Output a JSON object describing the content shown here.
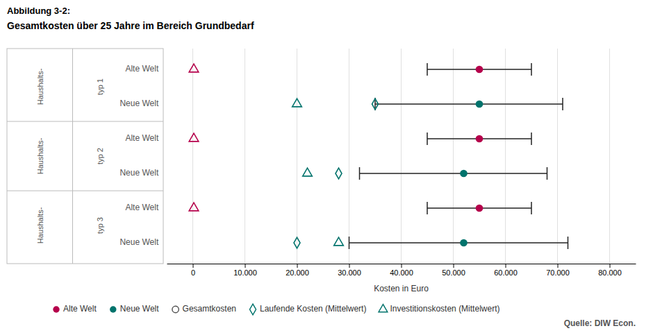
{
  "chart_data": {
    "type": "dot",
    "orientation": "horizontal",
    "title": "Abbildung 3-2:",
    "subtitle": "Gesamtkosten über 25 Jahre im Bereich Grundbedarf",
    "x_label": "Kosten in Euro",
    "source": "Quelle: DIW Econ.",
    "xlim": [
      -5000,
      85000
    ],
    "xticks": [
      0,
      {
        "value": 10000,
        "label": "10.000"
      },
      {
        "value": 20000,
        "label": "20.000"
      },
      {
        "value": 30000,
        "label": "30.000"
      },
      {
        "value": 40000,
        "label": "40.000"
      },
      {
        "value": 50000,
        "label": "50.000"
      },
      {
        "value": 60000,
        "label": "60.000"
      },
      {
        "value": 70000,
        "label": "70.000"
      },
      {
        "value": 80000,
        "label": "80.000"
      }
    ],
    "grid": true,
    "legend": "bottom",
    "categories": [
      "Alte Welt",
      "Neue Welt",
      "Alte Welt",
      "Neue Welt",
      "Alte Welt",
      "Neue Welt"
    ],
    "row_groups": [
      {
        "label": "Haushalts-",
        "sublabel": "typ 1"
      },
      {
        "label": "Haushalts-",
        "sublabel": "typ 2"
      },
      {
        "label": "Haushalts-",
        "sublabel": "typ 3"
      }
    ],
    "color_key": [
      {
        "name": "Alte Welt",
        "color": "#b5004b"
      },
      {
        "name": "Neue Welt",
        "color": "#00736c"
      }
    ],
    "series": [
      {
        "name": "Gesamtkosten",
        "marker": "circle",
        "color": "#555555",
        "values": [
          55000,
          55000,
          55000,
          52000,
          55000,
          52000
        ],
        "err_lo": [
          45000,
          35000,
          45000,
          32000,
          45000,
          30000
        ],
        "err_hi": [
          65000,
          71000,
          65000,
          68000,
          65000,
          72000
        ],
        "colors": [
          "#b5004b",
          "#00736c",
          "#b5004b",
          "#00736c",
          "#b5004b",
          "#00736c"
        ]
      },
      {
        "name": "Laufende Kosten (Mittelwert)",
        "marker": "diamond",
        "color": "#00736c",
        "values": [
          null,
          35000,
          null,
          28000,
          null,
          20000
        ],
        "colors": [
          null,
          "#00736c",
          null,
          "#00736c",
          null,
          "#00736c"
        ]
      },
      {
        "name": "Investitionskosten (Mittelwert)",
        "marker": "triangle",
        "color": "#00736c",
        "values": [
          200,
          20000,
          200,
          22000,
          200,
          28000
        ],
        "colors": [
          "#b5004b",
          "#00736c",
          "#b5004b",
          "#00736c",
          "#b5004b",
          "#00736c"
        ]
      }
    ]
  }
}
